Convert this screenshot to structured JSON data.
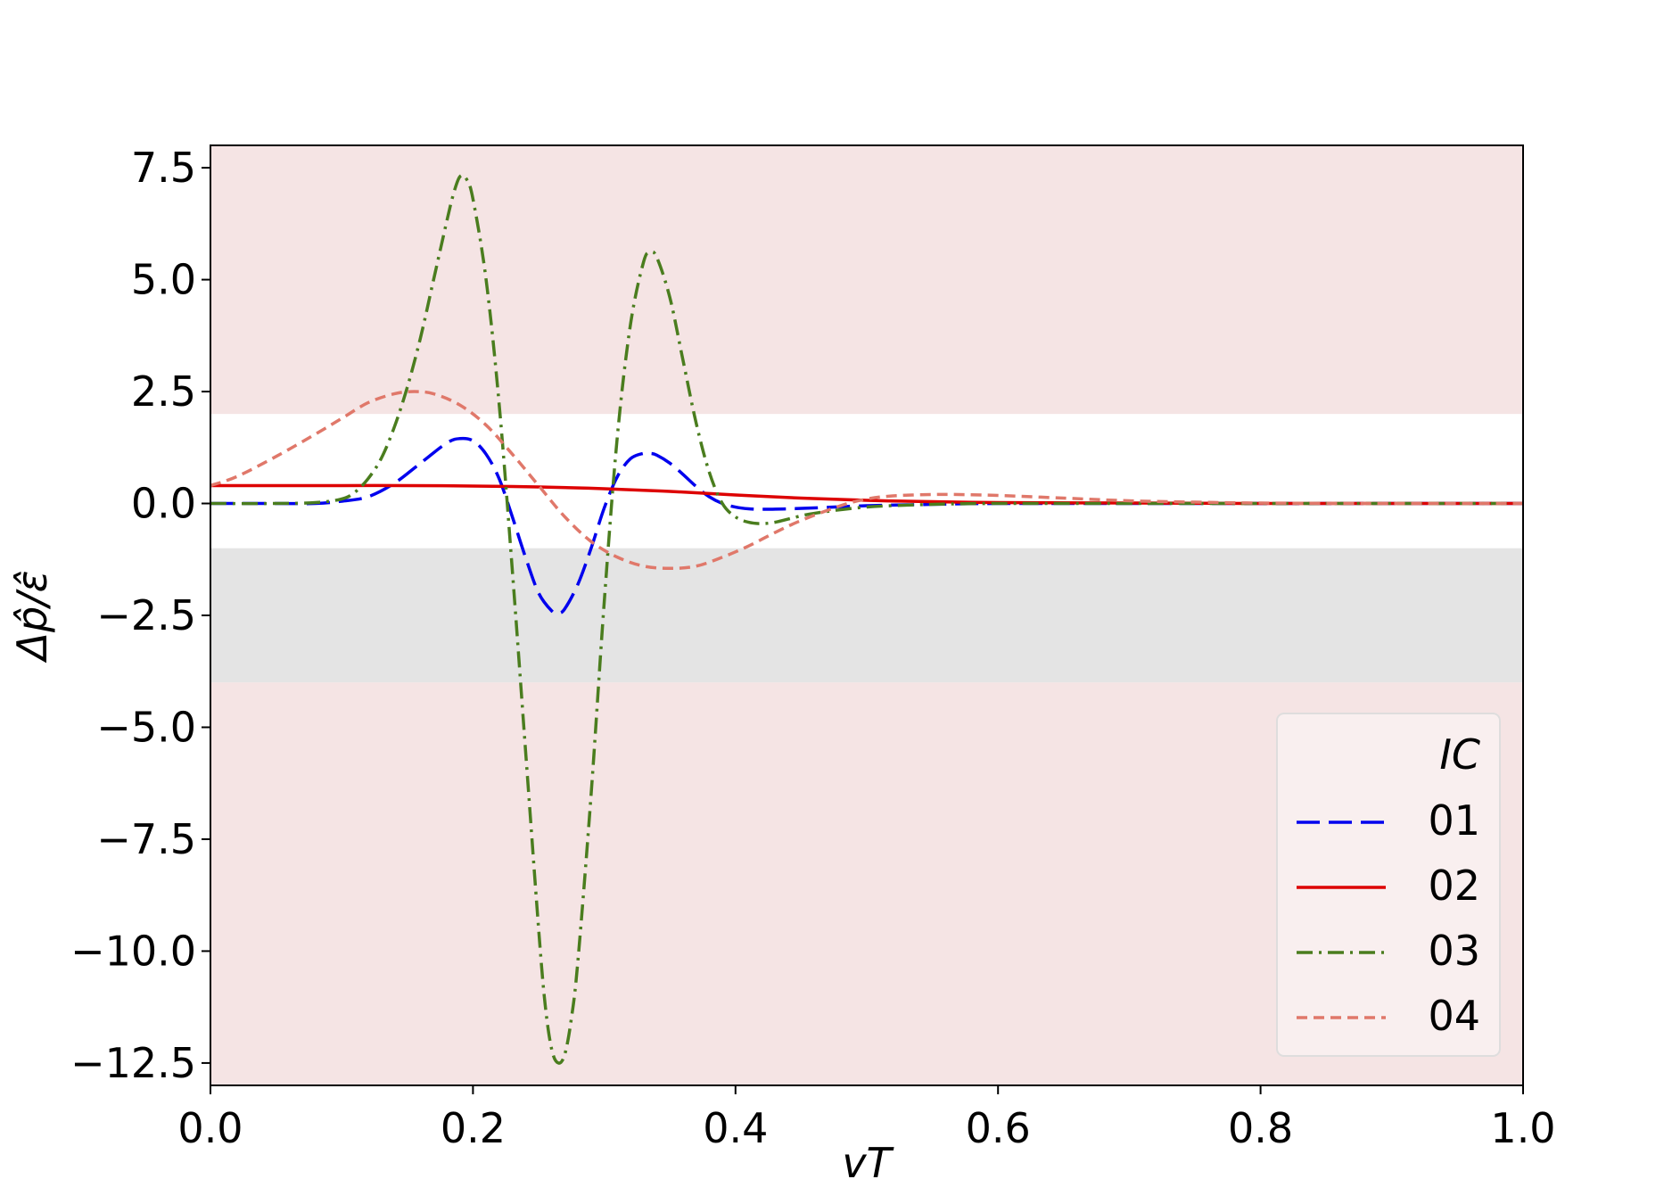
{
  "chart_data": {
    "type": "line",
    "title": "",
    "xlabel": "vT",
    "ylabel": "Δp̂/ε̂",
    "xlim": [
      0.0,
      1.0
    ],
    "ylim": [
      -13.0,
      8.0
    ],
    "x_ticks": [
      0.0,
      0.2,
      0.4,
      0.6,
      0.8,
      1.0
    ],
    "x_tick_labels": [
      "0.0",
      "0.2",
      "0.4",
      "0.6",
      "0.8",
      "1.0"
    ],
    "y_ticks": [
      7.5,
      5.0,
      2.5,
      0.0,
      -2.5,
      -5.0,
      -7.5,
      -10.0,
      -12.5
    ],
    "y_tick_labels": [
      "7.5",
      "5.0",
      "2.5",
      "0.0",
      "−2.5",
      "−5.0",
      "−7.5",
      "−10.0",
      "−12.5"
    ],
    "grid": false,
    "bands": [
      {
        "name": "upper",
        "y_from": 2.0,
        "y_to": 8.0,
        "color": "#f5e4e4"
      },
      {
        "name": "middle-gray",
        "y_from": -4.0,
        "y_to": -1.0,
        "color": "#e4e4e4"
      },
      {
        "name": "lower",
        "y_from": -13.0,
        "y_to": -4.0,
        "color": "#f5e4e4"
      }
    ],
    "legend": {
      "title": "IC",
      "placement": "lower-right",
      "entries": [
        "01",
        "02",
        "03",
        "04"
      ]
    },
    "series": [
      {
        "name": "01",
        "color": "#0000ee",
        "dash": "dashed-long",
        "x": [
          0.0,
          0.02,
          0.05,
          0.08,
          0.1,
          0.12,
          0.14,
          0.16,
          0.18,
          0.19,
          0.2,
          0.21,
          0.22,
          0.23,
          0.24,
          0.25,
          0.26,
          0.265,
          0.27,
          0.28,
          0.29,
          0.3,
          0.31,
          0.32,
          0.33,
          0.335,
          0.34,
          0.35,
          0.36,
          0.37,
          0.38,
          0.39,
          0.4,
          0.41,
          0.42,
          0.44,
          0.46,
          0.5,
          0.55,
          0.6,
          0.7,
          0.8,
          0.9,
          1.0
        ],
        "y": [
          0.0,
          0.0,
          0.0,
          0.0,
          0.05,
          0.15,
          0.45,
          0.9,
          1.35,
          1.45,
          1.4,
          1.1,
          0.55,
          -0.3,
          -1.2,
          -2.0,
          -2.4,
          -2.45,
          -2.35,
          -1.8,
          -1.0,
          -0.1,
          0.6,
          1.0,
          1.12,
          1.12,
          1.08,
          0.9,
          0.65,
          0.38,
          0.15,
          0.0,
          -0.08,
          -0.12,
          -0.13,
          -0.12,
          -0.1,
          -0.05,
          -0.02,
          0.0,
          0.0,
          0.0,
          0.0,
          0.0
        ]
      },
      {
        "name": "02",
        "color": "#dd0000",
        "dash": "solid",
        "x": [
          0.0,
          0.05,
          0.1,
          0.15,
          0.2,
          0.25,
          0.3,
          0.35,
          0.4,
          0.45,
          0.5,
          0.55,
          0.6,
          0.7,
          0.8,
          0.9,
          1.0
        ],
        "y": [
          0.4,
          0.4,
          0.4,
          0.4,
          0.39,
          0.37,
          0.33,
          0.27,
          0.19,
          0.12,
          0.07,
          0.04,
          0.02,
          0.01,
          0.0,
          0.0,
          0.0
        ]
      },
      {
        "name": "03",
        "color": "#4a7d1e",
        "dash": "dashdot",
        "x": [
          0.0,
          0.05,
          0.08,
          0.1,
          0.11,
          0.12,
          0.13,
          0.14,
          0.15,
          0.16,
          0.17,
          0.18,
          0.185,
          0.19,
          0.195,
          0.2,
          0.21,
          0.22,
          0.23,
          0.24,
          0.25,
          0.255,
          0.26,
          0.265,
          0.27,
          0.275,
          0.28,
          0.29,
          0.3,
          0.31,
          0.32,
          0.33,
          0.335,
          0.34,
          0.35,
          0.36,
          0.37,
          0.38,
          0.39,
          0.4,
          0.41,
          0.42,
          0.43,
          0.44,
          0.46,
          0.5,
          0.55,
          0.6,
          0.7,
          0.8,
          1.0
        ],
        "y": [
          0.0,
          0.0,
          0.02,
          0.1,
          0.25,
          0.55,
          1.0,
          1.7,
          2.6,
          3.7,
          5.0,
          6.3,
          6.9,
          7.3,
          7.25,
          6.8,
          5.0,
          2.2,
          -1.5,
          -5.5,
          -9.5,
          -11.2,
          -12.2,
          -12.5,
          -12.3,
          -11.5,
          -10.2,
          -6.5,
          -2.2,
          1.5,
          4.0,
          5.4,
          5.6,
          5.5,
          4.6,
          3.2,
          1.8,
          0.7,
          0.0,
          -0.3,
          -0.42,
          -0.45,
          -0.42,
          -0.35,
          -0.22,
          -0.08,
          -0.02,
          0.0,
          0.0,
          0.0,
          0.0
        ]
      },
      {
        "name": "04",
        "color": "#e0786a",
        "dash": "dashed-short",
        "x": [
          0.0,
          0.02,
          0.05,
          0.08,
          0.1,
          0.12,
          0.14,
          0.155,
          0.17,
          0.19,
          0.21,
          0.23,
          0.25,
          0.27,
          0.29,
          0.31,
          0.33,
          0.35,
          0.37,
          0.39,
          0.41,
          0.43,
          0.45,
          0.48,
          0.5,
          0.52,
          0.55,
          0.57,
          0.6,
          0.65,
          0.7,
          0.75,
          0.8,
          0.9,
          1.0
        ],
        "y": [
          0.4,
          0.6,
          1.05,
          1.55,
          1.9,
          2.25,
          2.45,
          2.5,
          2.45,
          2.2,
          1.75,
          1.1,
          0.4,
          -0.3,
          -0.85,
          -1.2,
          -1.4,
          -1.45,
          -1.4,
          -1.2,
          -0.95,
          -0.65,
          -0.38,
          -0.05,
          0.1,
          0.17,
          0.2,
          0.2,
          0.18,
          0.12,
          0.06,
          0.03,
          0.01,
          0.0,
          0.0
        ]
      }
    ]
  }
}
